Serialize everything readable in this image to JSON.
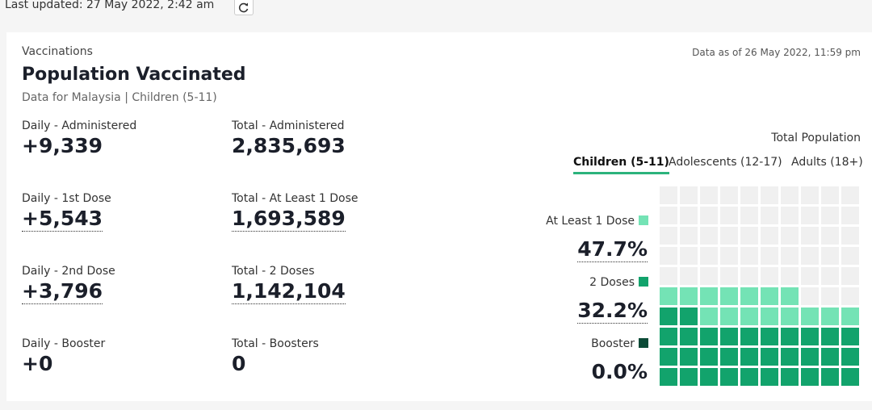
{
  "header": {
    "last_updated": "Last updated: 27 May 2022, 2:42 am"
  },
  "card": {
    "section": "Vaccinations",
    "title": "Population Vaccinated",
    "subtitle": "Data for Malaysia | Children (5-11)",
    "data_as_of": "Data as of 26 May 2022, 11:59 pm",
    "stats": [
      {
        "label": "Daily - Administered",
        "value": "+9,339",
        "dotted": false
      },
      {
        "label": "Total - Administered",
        "value": "2,835,693",
        "dotted": false
      },
      {
        "label": "Daily - 1st Dose",
        "value": "+5,543",
        "dotted": true
      },
      {
        "label": "Total - At Least 1 Dose",
        "value": "1,693,589",
        "dotted": true
      },
      {
        "label": "Daily - 2nd Dose",
        "value": "+3,796",
        "dotted": true
      },
      {
        "label": "Total - 2 Doses",
        "value": "1,142,104",
        "dotted": true
      },
      {
        "label": "Daily - Booster",
        "value": "+0",
        "dotted": false
      },
      {
        "label": "Total - Boosters",
        "value": "0",
        "dotted": false
      }
    ],
    "population_label": "Total Population",
    "tabs": [
      "Children (5-11)",
      "Adolescents (12-17)",
      "Adults (18+)"
    ],
    "active_tab": 0,
    "doses": [
      {
        "label": "At Least 1 Dose",
        "value": 47.7,
        "value_label": "47.7%",
        "color": "#74e3b5",
        "dotted": true
      },
      {
        "label": "2 Doses",
        "value": 32.2,
        "value_label": "32.2%",
        "color": "#12a36c",
        "dotted": true
      },
      {
        "label": "Booster",
        "value": 0.0,
        "value_label": "0.0%",
        "color": "#0b4a36",
        "dotted": false
      }
    ]
  }
}
